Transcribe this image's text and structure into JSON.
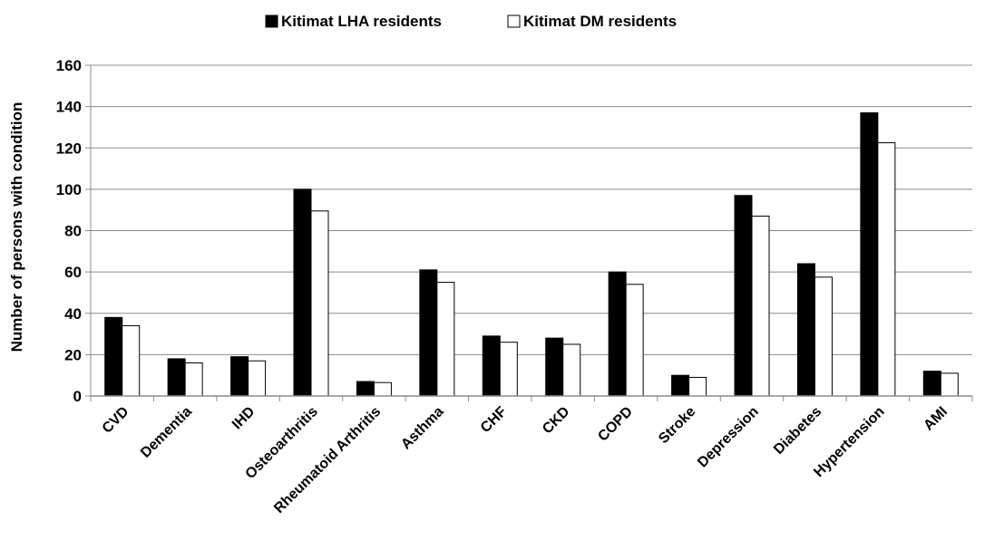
{
  "chart_data": {
    "type": "bar",
    "title": "",
    "xlabel": "",
    "ylabel": "Number of persons with condition",
    "ylim": [
      0,
      160
    ],
    "yticks": [
      0,
      20,
      40,
      60,
      80,
      100,
      120,
      140,
      160
    ],
    "grid": true,
    "legend_position": "top",
    "categories": [
      "CVD",
      "Dementia",
      "IHD",
      "Osteoarthritis",
      "Rheumatoid Arthritis",
      "Asthma",
      "CHF",
      "CKD",
      "COPD",
      "Stroke",
      "Depression",
      "Diabetes",
      "Hypertension",
      "AMI"
    ],
    "series": [
      {
        "name": "Kitimat LHA residents",
        "color": "#000000",
        "values": [
          38,
          18,
          19,
          100,
          7,
          61,
          29,
          28,
          60,
          10,
          97,
          64,
          137,
          12
        ]
      },
      {
        "name": "Kitimat DM residents",
        "color": "#ffffff",
        "values": [
          34,
          16,
          17,
          89.5,
          6.5,
          55,
          26,
          25,
          54,
          9,
          87,
          57.5,
          122.5,
          11
        ]
      }
    ]
  }
}
